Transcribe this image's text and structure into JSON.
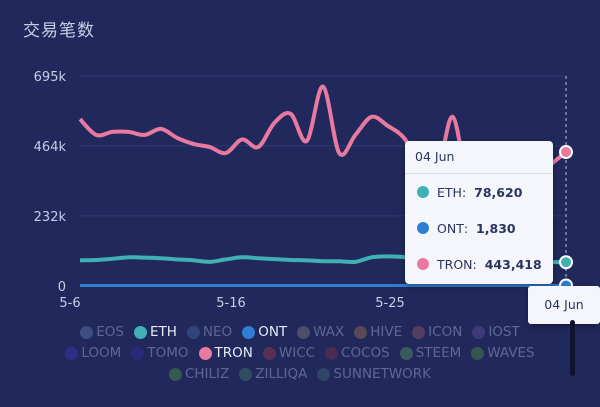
{
  "title": "交易笔数",
  "chart_data": {
    "type": "line",
    "title": "交易笔数",
    "x_ticks": [
      "5-6",
      "5-16",
      "5-25"
    ],
    "y_ticks": [
      "0",
      "232k",
      "464k",
      "695k"
    ],
    "ylim": [
      0,
      695000
    ],
    "grid": true,
    "legend_position": "bottom",
    "series": [
      {
        "name": "TRON",
        "color": "#e97a9f",
        "values": [
          552000,
          500000,
          510000,
          510000,
          500000,
          520000,
          490000,
          470000,
          460000,
          440000,
          485000,
          460000,
          540000,
          570000,
          480000,
          660000,
          440000,
          500000,
          560000,
          530000,
          490000,
          400000,
          360000,
          560000,
          320000,
          300000,
          340000,
          370000,
          360000,
          400000,
          443418
        ]
      },
      {
        "name": "ETH",
        "color": "#3fb1b4",
        "values": [
          85000,
          86000,
          90000,
          95000,
          94000,
          92000,
          88000,
          85000,
          80000,
          88000,
          95000,
          92000,
          89000,
          86000,
          85000,
          82000,
          82000,
          80000,
          95000,
          98000,
          96000,
          93000,
          91000,
          90000,
          88000,
          86000,
          84000,
          82000,
          80000,
          79000,
          78620
        ]
      },
      {
        "name": "ONT",
        "color": "#2f7dd4",
        "values": [
          1800,
          1800,
          1850,
          1820,
          1830,
          1800,
          1790,
          1810,
          1830,
          1840,
          1820,
          1830,
          1810,
          1800,
          1820,
          1830,
          1840,
          1830,
          1820,
          1810,
          1830,
          1840,
          1830,
          1820,
          1830,
          1830,
          1820,
          1830,
          1840,
          1830,
          1830
        ]
      }
    ]
  },
  "legend": [
    [
      {
        "name": "EOS",
        "color": "#3d4f80",
        "active": false
      },
      {
        "name": "ETH",
        "color": "#3fb1b4",
        "active": true
      },
      {
        "name": "NEO",
        "color": "#31447a",
        "active": false
      },
      {
        "name": "ONT",
        "color": "#2f7dd4",
        "active": true
      },
      {
        "name": "WAX",
        "color": "#4b4e68",
        "active": false
      },
      {
        "name": "HIVE",
        "color": "#5a4758",
        "active": false
      },
      {
        "name": "ICON",
        "color": "#553e5f",
        "active": false
      },
      {
        "name": "IOST",
        "color": "#3e3b78",
        "active": false
      }
    ],
    [
      {
        "name": "LOOM",
        "color": "#2d2f86",
        "active": false
      },
      {
        "name": "TOMO",
        "color": "#2a2a7a",
        "active": false
      },
      {
        "name": "TRON",
        "color": "#e97a9f",
        "active": true
      },
      {
        "name": "WICC",
        "color": "#5a2f54",
        "active": false
      },
      {
        "name": "COCOS",
        "color": "#4a2b52",
        "active": false
      },
      {
        "name": "STEEM",
        "color": "#3b5a60",
        "active": false
      },
      {
        "name": "WAVES",
        "color": "#35564f",
        "active": false
      }
    ],
    [
      {
        "name": "CHILIZ",
        "color": "#335952",
        "active": false
      },
      {
        "name": "ZILLIQA",
        "color": "#304d5d",
        "active": false
      },
      {
        "name": "SUNNETWORK",
        "color": "#2f4466",
        "active": false
      }
    ]
  ],
  "tooltip": {
    "date": "04 Jun",
    "rows": [
      {
        "name": "ETH",
        "color": "#3fb1b4",
        "value": "78,620"
      },
      {
        "name": "ONT",
        "color": "#2f7dd4",
        "value": "1,830"
      },
      {
        "name": "TRON",
        "color": "#e97a9f",
        "value": "443,418"
      }
    ]
  },
  "x_tooltip": "04 Jun"
}
